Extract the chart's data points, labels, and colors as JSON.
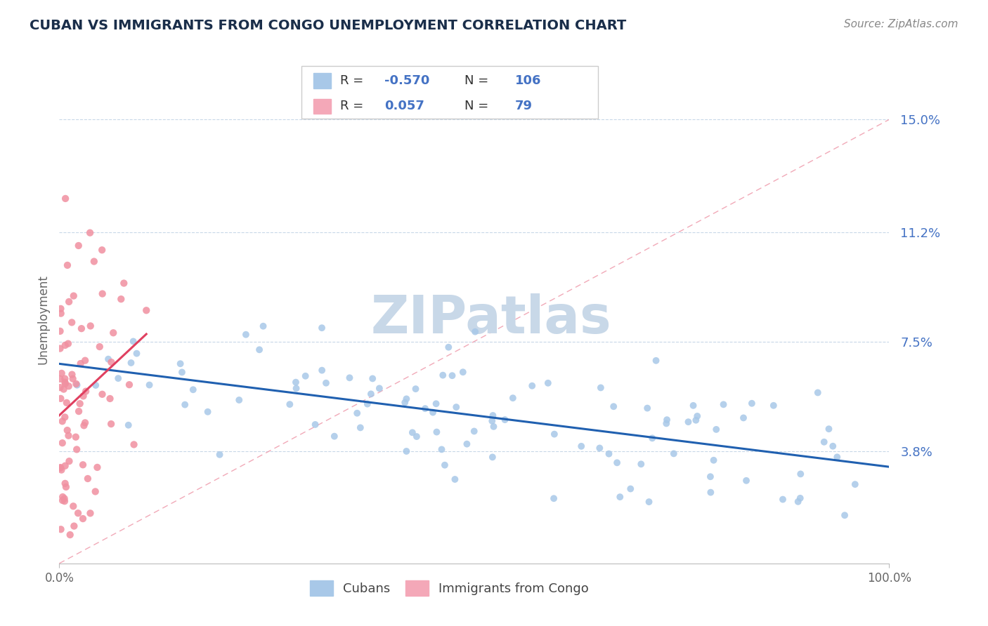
{
  "title": "CUBAN VS IMMIGRANTS FROM CONGO UNEMPLOYMENT CORRELATION CHART",
  "source_text": "Source: ZipAtlas.com",
  "ylabel": "Unemployment",
  "xlim": [
    0.0,
    100.0
  ],
  "ylim": [
    0.0,
    16.5
  ],
  "yticks": [
    3.8,
    7.5,
    11.2,
    15.0
  ],
  "ytick_labels": [
    "3.8%",
    "7.5%",
    "11.2%",
    "15.0%"
  ],
  "cubans_color": "#a8c8e8",
  "congo_color": "#f090a0",
  "trend_cuban_color": "#2060b0",
  "trend_congo_color": "#e04060",
  "diagonal_color": "#f0a0b0",
  "watermark_color": "#c8d8e8",
  "legend_swatch_cuban": "#a8c8e8",
  "legend_swatch_congo": "#f4a8b8",
  "cuban_R": -0.57,
  "cuban_N": 106,
  "congo_R": 0.057,
  "congo_N": 79
}
